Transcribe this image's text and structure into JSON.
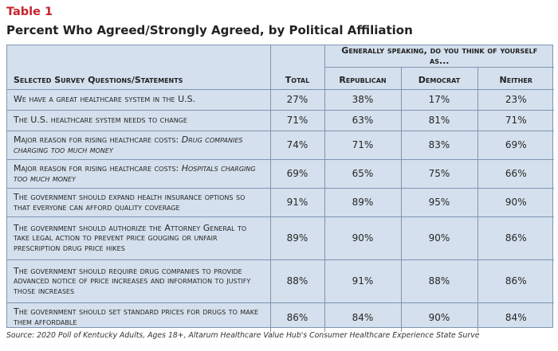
{
  "table_label": "Table 1",
  "title": "Percent Who Agreed/Strongly Agreed, by Political Affiliation",
  "headers": {
    "question": "Selected Survey Questions/Statements",
    "total": "Total",
    "group": "Generally speaking, do you think of yourself as...",
    "republican": "Republican",
    "democrat": "Democrat",
    "neither": "Neither"
  },
  "rows": [
    {
      "text": "We have a great healthcare system in the U.S.",
      "italic": "",
      "total": "27%",
      "republican": "38%",
      "democrat": "17%",
      "neither": "23%"
    },
    {
      "text": "The U.S. healthcare system needs to change",
      "italic": "",
      "total": "71%",
      "republican": "63%",
      "democrat": "81%",
      "neither": "71%"
    },
    {
      "text": "Major reason for rising healthcare costs: ",
      "italic": "Drug companies charging too much money",
      "total": "74%",
      "republican": "71%",
      "democrat": "83%",
      "neither": "69%"
    },
    {
      "text": "Major reason for rising healthcare costs: ",
      "italic": "Hospitals charging too much money",
      "total": "69%",
      "republican": "65%",
      "democrat": "75%",
      "neither": "66%"
    },
    {
      "text": "The government should expand health insurance options so that everyone can afford quality coverage",
      "italic": "",
      "total": "91%",
      "republican": "89%",
      "democrat": "95%",
      "neither": "90%"
    },
    {
      "text": "The government should authorize the Attorney General to take legal action to prevent price gouging or unfair prescription drug price hikes",
      "italic": "",
      "total": "89%",
      "republican": "90%",
      "democrat": "90%",
      "neither": "86%"
    },
    {
      "text": "The government should require drug companies to provide advanced notice of price increases and information to justify those increases",
      "italic": "",
      "total": "88%",
      "republican": "91%",
      "democrat": "88%",
      "neither": "86%"
    },
    {
      "text": "The government should set standard prices for drugs to make them affordable",
      "italic": "",
      "total": "86%",
      "republican": "84%",
      "democrat": "90%",
      "neither": "84%"
    }
  ],
  "source": "Source: 2020 Poll of Kentucky Adults, Ages 18+, Altarum Healthcare Value Hub's Consumer Healthcare Experience State Surve"
}
